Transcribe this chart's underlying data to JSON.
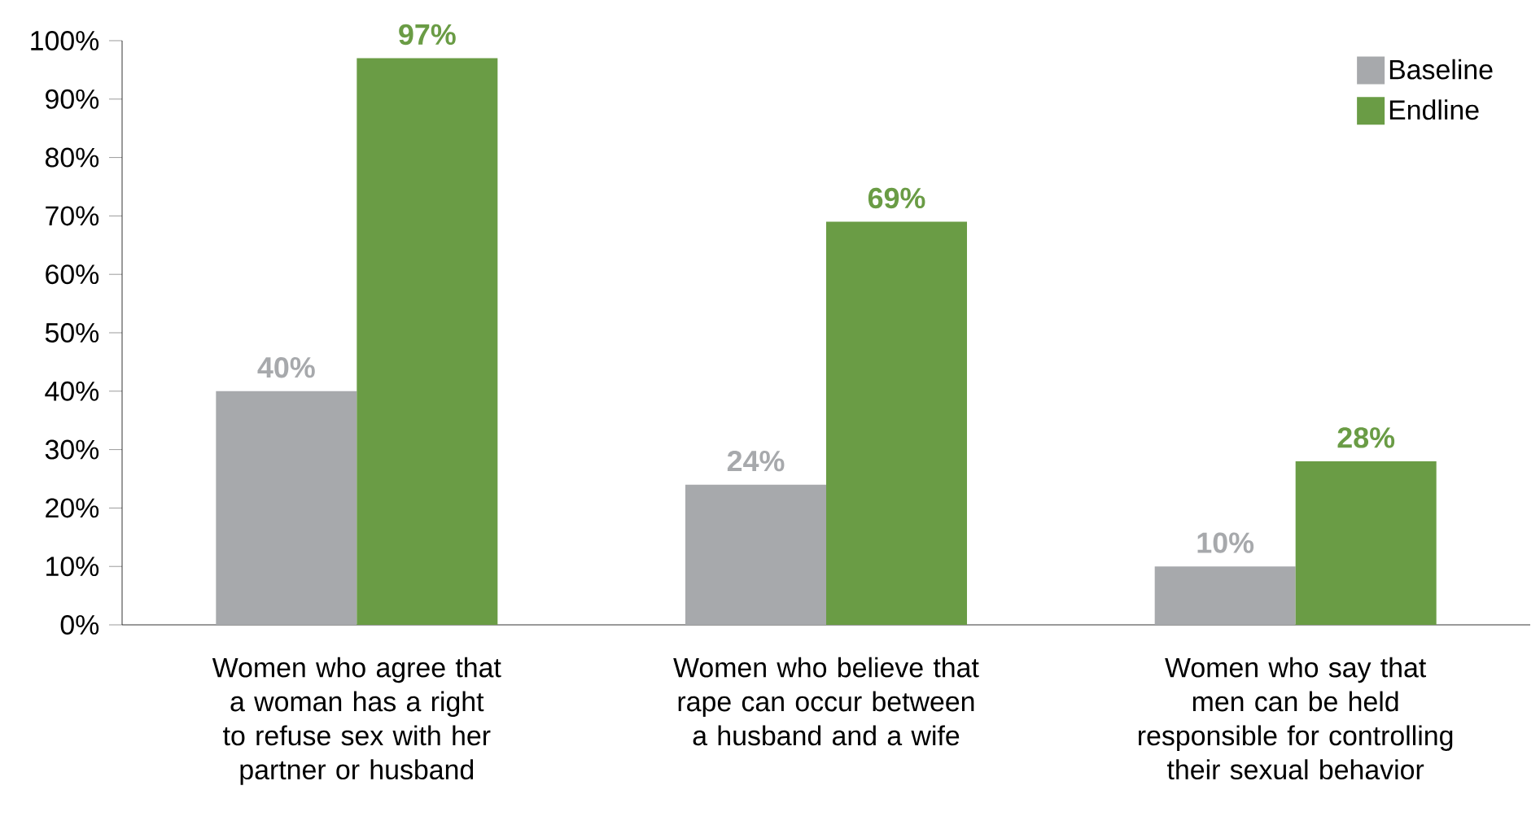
{
  "chart_data": {
    "type": "bar",
    "categories": [
      "Women who agree that a woman has a right to refuse sex with her partner or husband",
      "Women who believe that rape can occur between a husband and a wife",
      "Women who say that men can be held responsible for controlling their sexual behavior"
    ],
    "series": [
      {
        "name": "Baseline",
        "color": "#a7a9ac",
        "values": [
          40,
          24,
          10
        ],
        "value_labels": [
          "40%",
          "24%",
          "10%"
        ]
      },
      {
        "name": "Endline",
        "color": "#6a9c45",
        "values": [
          97,
          69,
          28
        ],
        "value_labels": [
          "97%",
          "69%",
          "28%"
        ]
      }
    ],
    "ylim": [
      0,
      100
    ],
    "yticks": [
      {
        "value": 0,
        "label": "0%"
      },
      {
        "value": 10,
        "label": "10%"
      },
      {
        "value": 20,
        "label": "20%"
      },
      {
        "value": 30,
        "label": "30%"
      },
      {
        "value": 40,
        "label": "40%"
      },
      {
        "value": 50,
        "label": "50%"
      },
      {
        "value": 60,
        "label": "60%"
      },
      {
        "value": 70,
        "label": "70%"
      },
      {
        "value": 80,
        "label": "80%"
      },
      {
        "value": 90,
        "label": "90%"
      },
      {
        "value": 100,
        "label": "100%"
      }
    ],
    "grid": false,
    "legend": "top right"
  }
}
